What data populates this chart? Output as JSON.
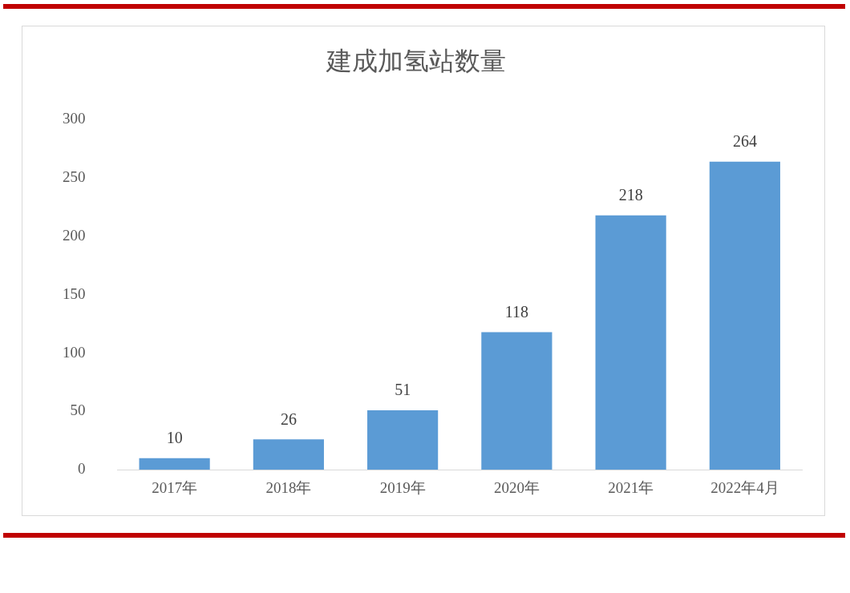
{
  "chart_data": {
    "type": "bar",
    "title": "建成加氢站数量",
    "categories": [
      "2017年",
      "2018年",
      "2019年",
      "2020年",
      "2021年",
      "2022年4月"
    ],
    "values": [
      10,
      26,
      51,
      118,
      218,
      264
    ],
    "color": "#5b9bd5",
    "ylim": [
      0,
      300
    ],
    "yticks": [
      0,
      50,
      100,
      150,
      200,
      250,
      300
    ],
    "data_labels": true
  }
}
